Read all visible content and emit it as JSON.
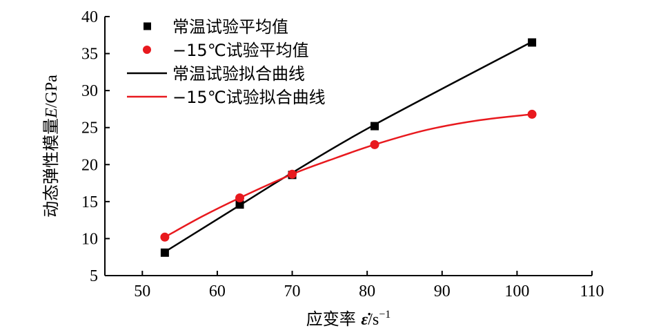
{
  "chart_data": {
    "type": "scatter",
    "xlabel": "应变率 ε̇/s⁻¹",
    "xlabel_parts": {
      "prefix": "应变率 ",
      "symbol": "ε̇",
      "unit": "/s",
      "exponent": "−1"
    },
    "ylabel": "动态弹性模量E/GPa",
    "ylabel_parts": {
      "prefix": "动态弹性模量",
      "symbol": "E",
      "unit": "/GPa"
    },
    "xlim": [
      45,
      110
    ],
    "ylim": [
      5,
      40
    ],
    "xticks": [
      50,
      60,
      70,
      80,
      90,
      100,
      110
    ],
    "yticks": [
      5,
      10,
      15,
      20,
      25,
      30,
      35,
      40
    ],
    "grid": false,
    "legend_position": "top-left",
    "series": [
      {
        "name": "常温试验平均值",
        "kind": "markers",
        "marker": "square",
        "color": "#000000",
        "x": [
          53,
          63,
          70,
          81,
          102
        ],
        "y": [
          8.1,
          14.6,
          18.6,
          25.2,
          36.5
        ]
      },
      {
        "name": "−15℃试验平均值",
        "kind": "markers",
        "marker": "circle",
        "color": "#e8191e",
        "x": [
          53,
          63,
          70,
          81,
          102
        ],
        "y": [
          10.2,
          15.5,
          18.7,
          22.7,
          26.8
        ]
      },
      {
        "name": "常温试验拟合曲线",
        "kind": "line",
        "color": "#000000",
        "x": [
          53,
          63,
          70,
          81,
          102
        ],
        "y": [
          8.2,
          14.5,
          18.9,
          25.4,
          36.6
        ]
      },
      {
        "name": "−15℃试验拟合曲线",
        "kind": "line",
        "color": "#e8191e",
        "x": [
          53,
          58,
          63,
          70,
          75,
          81,
          88,
          95,
          102
        ],
        "y": [
          10.2,
          13.0,
          15.5,
          18.7,
          20.6,
          22.7,
          24.7,
          26.0,
          26.8
        ]
      }
    ]
  }
}
